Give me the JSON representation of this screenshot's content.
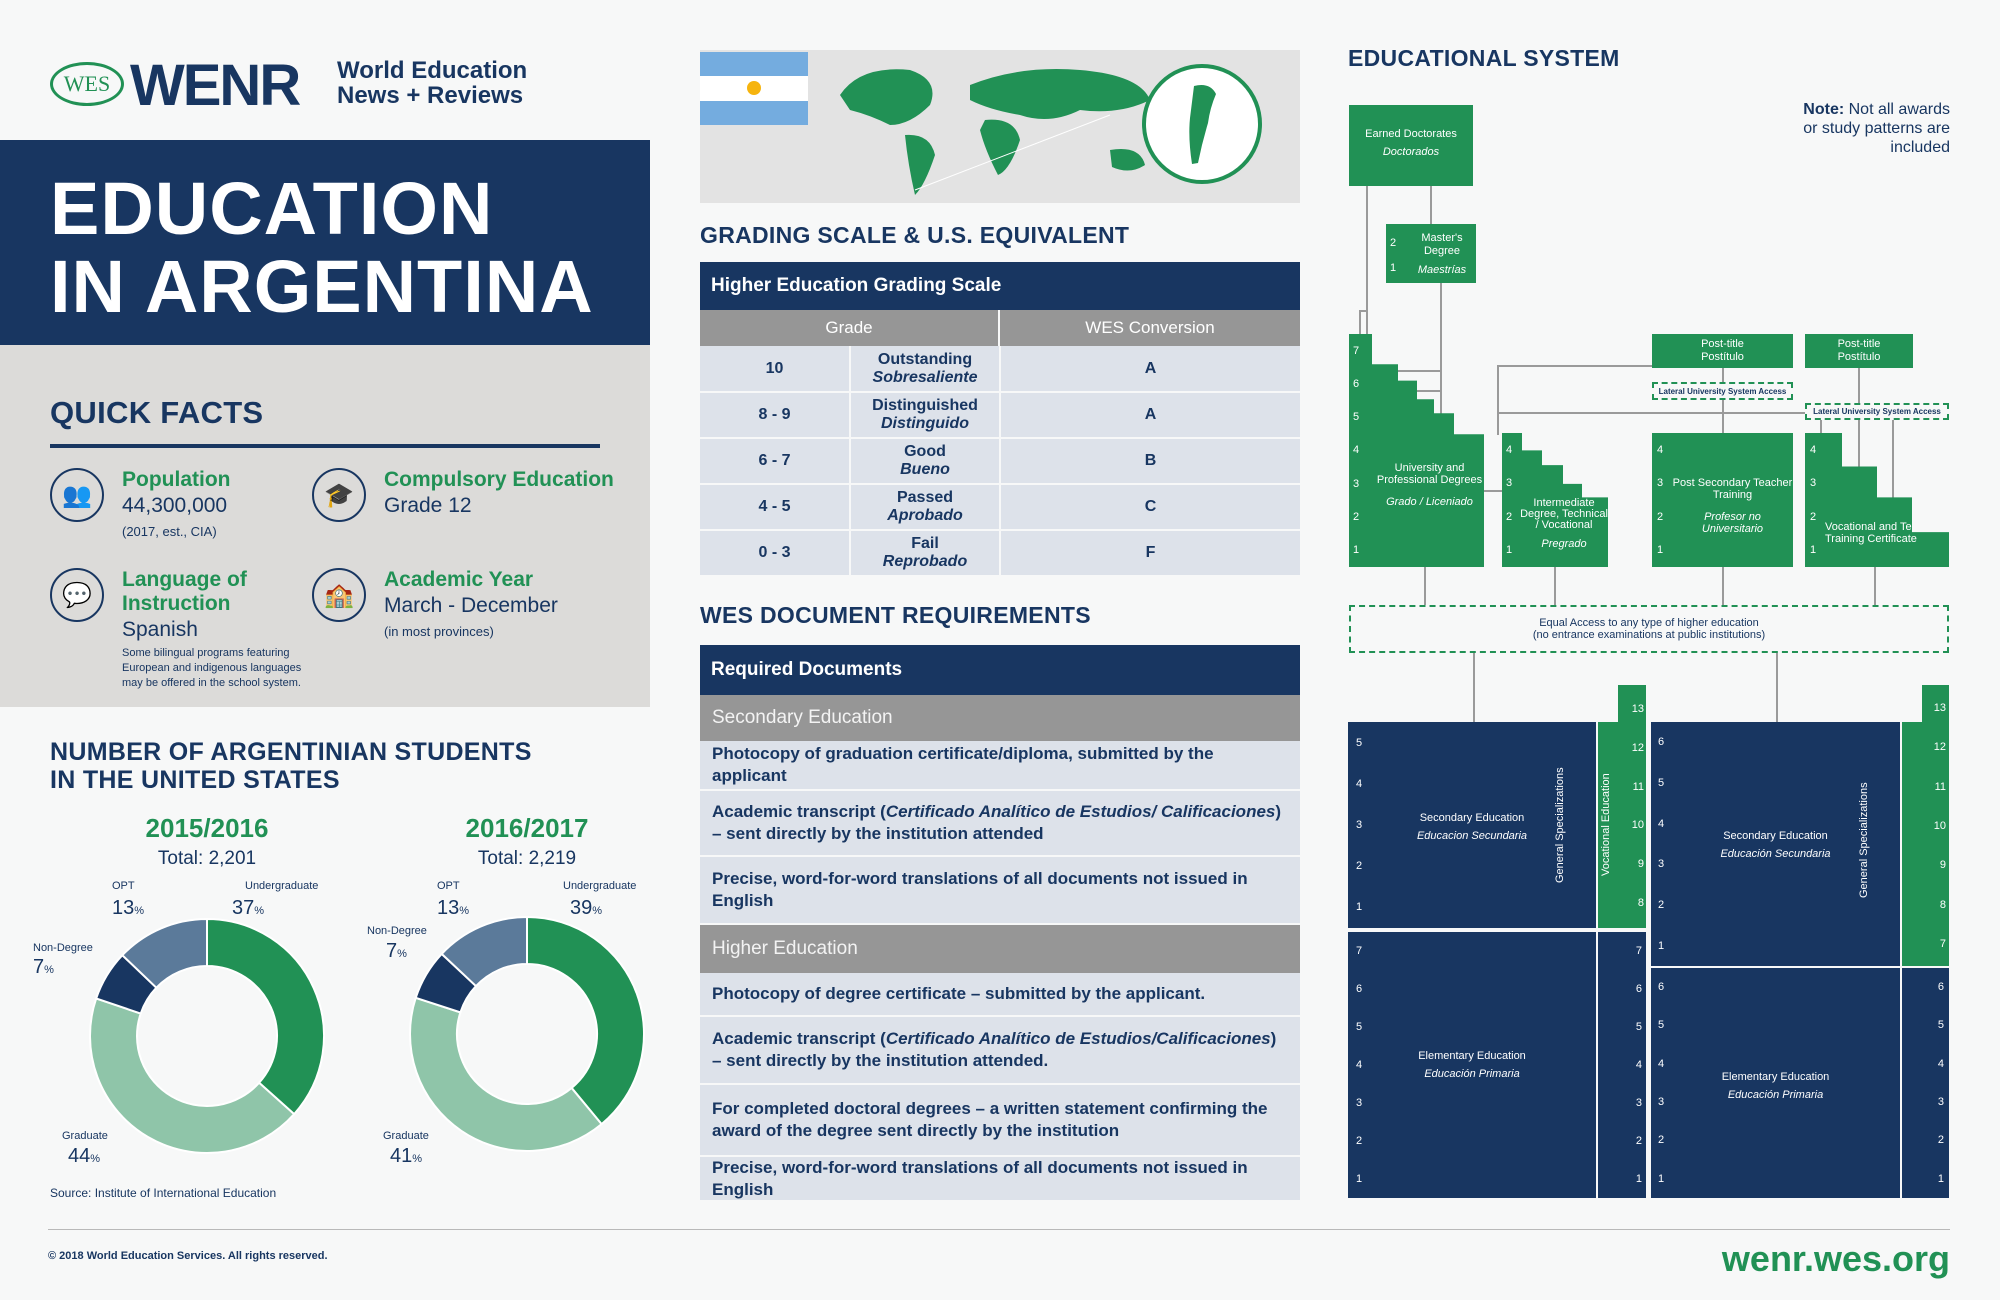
{
  "logo": {
    "wes": "WES",
    "wenr": "WENR",
    "sub_line1": "World Education",
    "sub_line2": "News + Reviews"
  },
  "title": {
    "line1": "EDUCATION",
    "line2": "IN ARGENTINA"
  },
  "quick_facts": {
    "heading": "QUICK FACTS",
    "items": [
      {
        "icon": "people-icon",
        "label": "Population",
        "value": "44,300,000",
        "note": "(2017, est., CIA)"
      },
      {
        "icon": "graduation-cap-icon",
        "label": "Compulsory Education",
        "value": "Grade 12"
      },
      {
        "icon": "speech-icon",
        "label": "Language of Instruction",
        "value": "Spanish",
        "note": "Some bilingual programs featuring European and indigenous languages may be offered in the school system."
      },
      {
        "icon": "school-building-icon",
        "label": "Academic Year",
        "value": "March - December",
        "note": "(in most provinces)"
      }
    ]
  },
  "students": {
    "heading_line1": "NUMBER OF ARGENTINIAN STUDENTS",
    "heading_line2": "IN THE UNITED STATES",
    "source": "Source: Institute of International Education"
  },
  "chart_data": [
    {
      "type": "pie",
      "donut": true,
      "title": "2015/2016",
      "subtitle": "Total: 2,201",
      "categories": [
        "Undergraduate",
        "Graduate",
        "Non-Degree",
        "OPT"
      ],
      "values": [
        37,
        44,
        7,
        13
      ],
      "unit": "%",
      "colors": [
        "#219155",
        "#8fc5a9",
        "#183661",
        "#5b7a9a"
      ]
    },
    {
      "type": "pie",
      "donut": true,
      "title": "2016/2017",
      "subtitle": "Total: 2,219",
      "categories": [
        "Undergraduate",
        "Graduate",
        "Non-Degree",
        "OPT"
      ],
      "values": [
        39,
        41,
        7,
        13
      ],
      "unit": "%",
      "colors": [
        "#219155",
        "#8fc5a9",
        "#183661",
        "#5b7a9a"
      ]
    }
  ],
  "grading": {
    "heading": "GRADING SCALE & U.S. EQUIVALENT",
    "table_title": "Higher Education Grading Scale",
    "col_grade": "Grade",
    "col_wes": "WES Conversion",
    "rows": [
      {
        "grade": "10",
        "en": "Outstanding",
        "es": "Sobresaliente",
        "wes": "A"
      },
      {
        "grade": "8 - 9",
        "en": "Distinguished",
        "es": "Distinguido",
        "wes": "A"
      },
      {
        "grade": "6 - 7",
        "en": "Good",
        "es": "Bueno",
        "wes": "B"
      },
      {
        "grade": "4 - 5",
        "en": "Passed",
        "es": "Aprobado",
        "wes": "C"
      },
      {
        "grade": "0 - 3",
        "en": "Fail",
        "es": "Reprobado",
        "wes": "F"
      }
    ]
  },
  "documents": {
    "heading": "WES DOCUMENT REQUIREMENTS",
    "table_title": "Required Documents",
    "sections": [
      {
        "title": "Secondary Education",
        "items": [
          {
            "pre": "Photocopy of graduation certificate/diploma, submitted by the applicant"
          },
          {
            "pre": "Academic transcript (",
            "it": "Certificado Analítico de Estudios/ Calificaciones",
            "post": ") – sent directly by the institution attended"
          },
          {
            "pre": "Precise, word-for-word translations of all documents not issued in English"
          }
        ]
      },
      {
        "title": "Higher Education",
        "items": [
          {
            "pre": "Photocopy of degree certificate – submitted by the applicant."
          },
          {
            "pre": "Academic transcript (",
            "it": "Certificado Analítico de Estudios/Calificaciones",
            "post": ") – sent directly by the institution attended."
          },
          {
            "pre": "For completed doctoral degrees – a written statement confirming the award of the degree sent directly by the institution"
          },
          {
            "pre": "Precise, word-for-word translations of all documents not issued in English"
          }
        ]
      }
    ]
  },
  "system": {
    "heading": "EDUCATIONAL SYSTEM",
    "note_bold": "Note:",
    "note": " Not all awards or study patterns are included",
    "doctorates": {
      "en": "Earned Doctorates",
      "es": "Doctorados"
    },
    "masters": {
      "en": "Master's Degree",
      "es": "Maestrías",
      "years": [
        "2",
        "1"
      ]
    },
    "university": {
      "en": "University and Professional Degrees",
      "es": "Grado / Liceniado",
      "years": [
        "7",
        "6",
        "5",
        "4",
        "3",
        "2",
        "1"
      ]
    },
    "intermediate": {
      "en": "Intermediate Degree, Technical / Vocational",
      "es": "Pregrado",
      "years": [
        "4",
        "3",
        "2",
        "1"
      ]
    },
    "teacher": {
      "en": "Post Secondary Teacher Training",
      "es": "Profesor no Universitario",
      "years": [
        "4",
        "3",
        "2",
        "1"
      ]
    },
    "vocational": {
      "en": "Vocational and Technical Training Certificate",
      "years": [
        "4",
        "3",
        "2",
        "1"
      ]
    },
    "post_title": {
      "en": "Post-title",
      "es": "Postítulo"
    },
    "lateral": "Lateral University System Access",
    "equal_access": {
      "line1": "Equal Access to any type of higher education",
      "line2": "(no entrance examinations at public institutions)"
    },
    "left": {
      "secondary": {
        "en": "Secondary Education",
        "es": "Educacion Secundaria",
        "years": [
          "5",
          "4",
          "3",
          "2",
          "1"
        ],
        "side": "General Specializations"
      },
      "vocational": {
        "label": "Vocational Education",
        "grades": [
          "13",
          "12",
          "11",
          "10",
          "9",
          "8"
        ]
      },
      "elementary": {
        "en": "Elementary Education",
        "es": "Educación Primaria",
        "years": [
          "7",
          "6",
          "5",
          "4",
          "3",
          "2",
          "1"
        ],
        "grades": [
          "7",
          "6",
          "5",
          "4",
          "3",
          "2",
          "1"
        ]
      }
    },
    "right": {
      "secondary": {
        "en": "Secondary Education",
        "es": "Educación Secundaria",
        "years": [
          "6",
          "5",
          "4",
          "3",
          "2",
          "1"
        ],
        "side": "General Specializations",
        "grades": [
          "13",
          "12",
          "11",
          "10",
          "9",
          "8",
          "7"
        ]
      },
      "elementary": {
        "en": "Elementary Education",
        "es": "Educación Primaria",
        "years": [
          "6",
          "5",
          "4",
          "3",
          "2",
          "1"
        ],
        "grades": [
          "6",
          "5",
          "4",
          "3",
          "2",
          "1"
        ]
      }
    }
  },
  "footer": {
    "copyright": "© 2018 World Education Services. All rights reserved.",
    "url": "wenr.wes.org"
  },
  "colors": {
    "navy": "#183661",
    "green": "#219155",
    "light_green": "#8fc5a9",
    "slate": "#5b7a9a",
    "gray": "#969696"
  }
}
